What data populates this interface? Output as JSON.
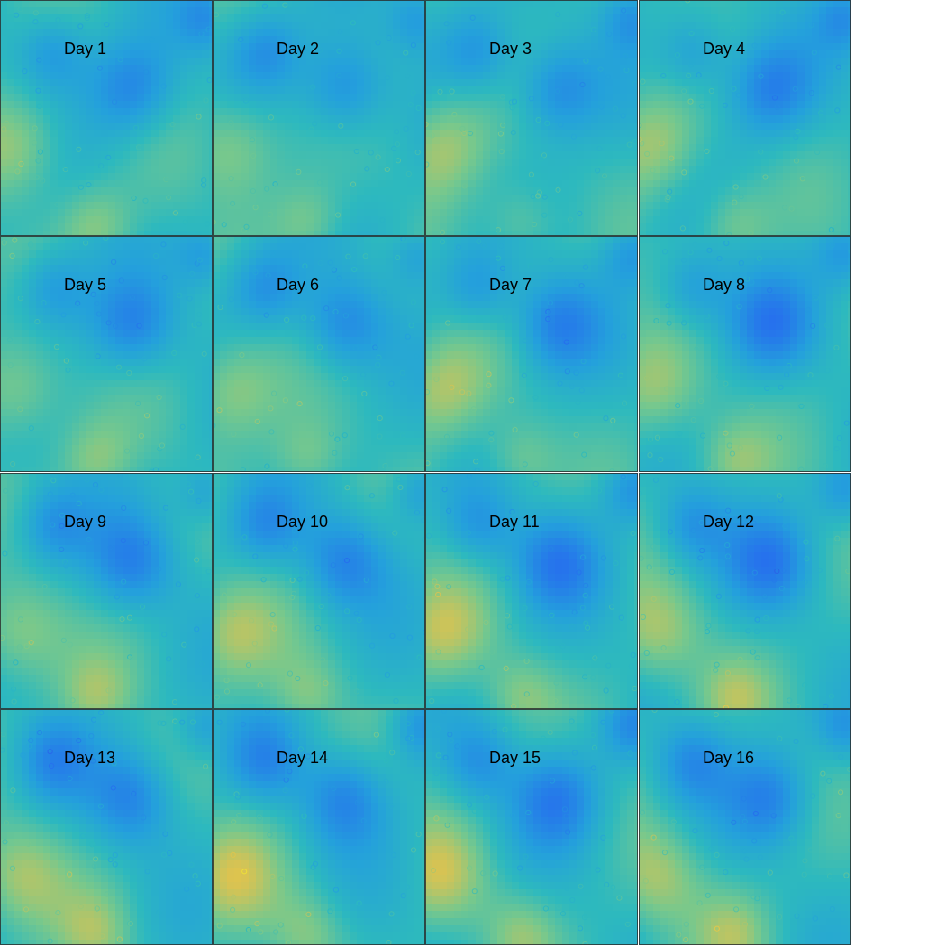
{
  "chart_data": {
    "type": "heatmap",
    "colormap": "parula",
    "colors": {
      "low": "#3e26a8",
      "mid": "#2db1c6",
      "high": "#f9fb0e"
    },
    "grid": {
      "rows": 4,
      "cols": 4
    },
    "axes_visible": false,
    "overlay": "scatter markers (open circles) colored by the same colormap",
    "panels": [
      {
        "title": "Day 1"
      },
      {
        "title": "Day 2"
      },
      {
        "title": "Day 3"
      },
      {
        "title": "Day 4"
      },
      {
        "title": "Day 5"
      },
      {
        "title": "Day 6"
      },
      {
        "title": "Day 7"
      },
      {
        "title": "Day 8"
      },
      {
        "title": "Day 9"
      },
      {
        "title": "Day 10"
      },
      {
        "title": "Day 11"
      },
      {
        "title": "Day 12"
      },
      {
        "title": "Day 13"
      },
      {
        "title": "Day 14"
      },
      {
        "title": "Day 15"
      },
      {
        "title": "Day 16"
      }
    ]
  }
}
